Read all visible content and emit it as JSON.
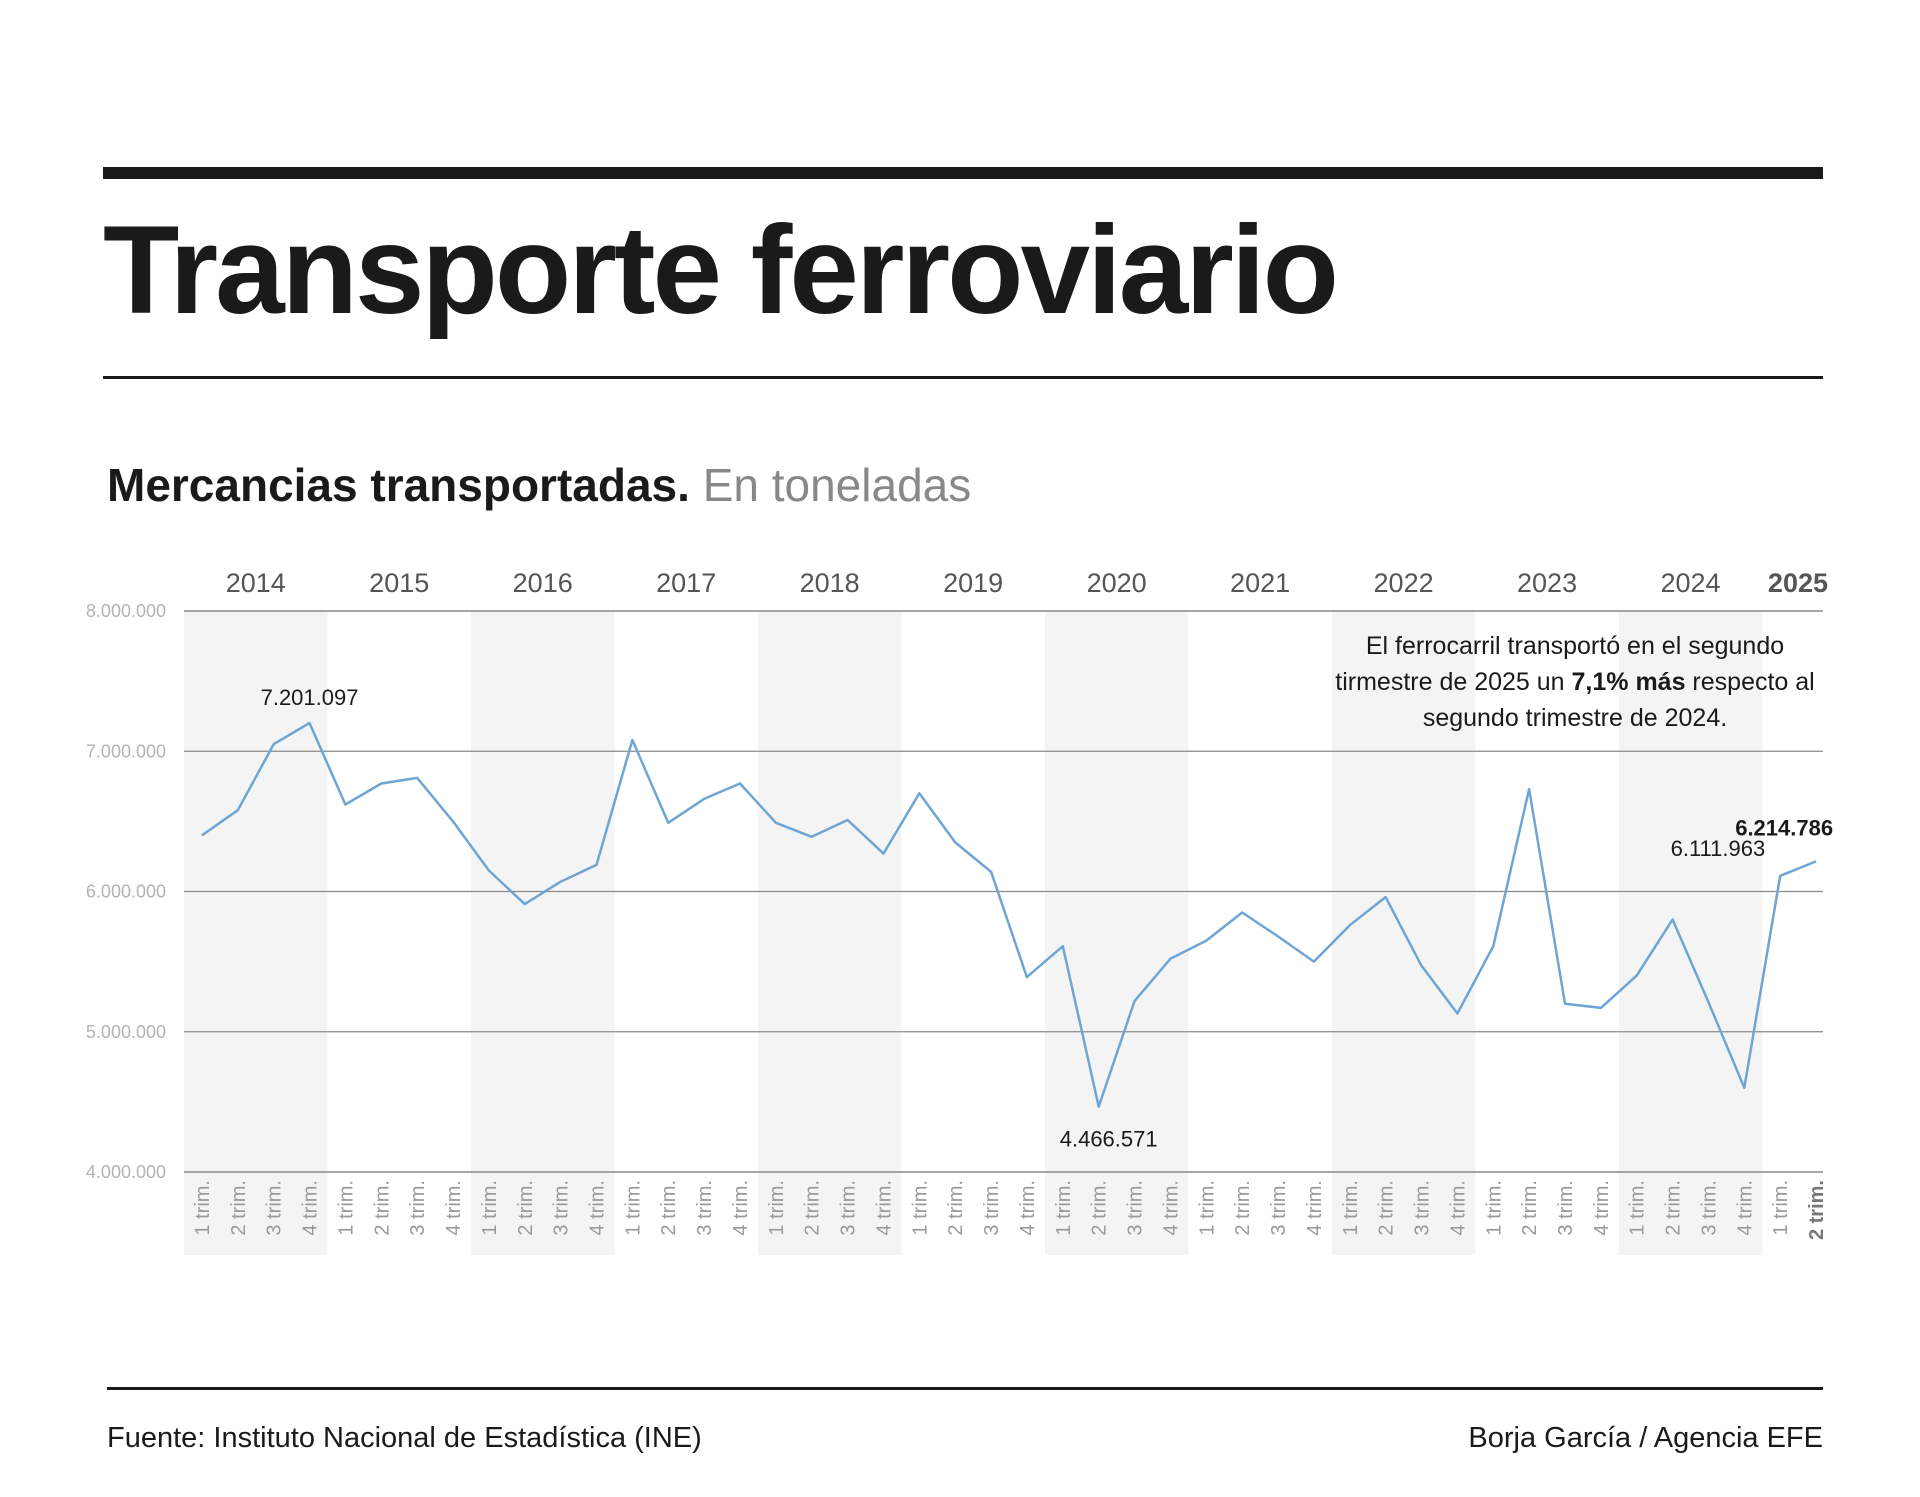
{
  "header": {
    "title": "Transporte ferroviario",
    "subtitle": "Mercancias transportadas.",
    "unit": "En toneladas"
  },
  "chart_data": {
    "type": "line",
    "y_ticks": [
      {
        "value": 8000000,
        "label": "8.000.000"
      },
      {
        "value": 7000000,
        "label": "7.000.000"
      },
      {
        "value": 6000000,
        "label": "6.000.000"
      },
      {
        "value": 5000000,
        "label": "5.000.000"
      },
      {
        "value": 4000000,
        "label": "4.000.000"
      }
    ],
    "ylim": [
      4000000,
      8000000
    ],
    "years": [
      "2014",
      "2015",
      "2016",
      "2017",
      "2018",
      "2019",
      "2020",
      "2021",
      "2022",
      "2023",
      "2024",
      "2025"
    ],
    "quarter_labels": [
      "1 trim.",
      "2 trim.",
      "3 trim.",
      "4 trim."
    ],
    "x": [
      "2014-Q1",
      "2014-Q2",
      "2014-Q3",
      "2014-Q4",
      "2015-Q1",
      "2015-Q2",
      "2015-Q3",
      "2015-Q4",
      "2016-Q1",
      "2016-Q2",
      "2016-Q3",
      "2016-Q4",
      "2017-Q1",
      "2017-Q2",
      "2017-Q3",
      "2017-Q4",
      "2018-Q1",
      "2018-Q2",
      "2018-Q3",
      "2018-Q4",
      "2019-Q1",
      "2019-Q2",
      "2019-Q3",
      "2019-Q4",
      "2020-Q1",
      "2020-Q2",
      "2020-Q3",
      "2020-Q4",
      "2021-Q1",
      "2021-Q2",
      "2021-Q3",
      "2021-Q4",
      "2022-Q1",
      "2022-Q2",
      "2022-Q3",
      "2022-Q4",
      "2023-Q1",
      "2023-Q2",
      "2023-Q3",
      "2023-Q4",
      "2024-Q1",
      "2024-Q2",
      "2024-Q3",
      "2024-Q4",
      "2025-Q1",
      "2025-Q2"
    ],
    "values": [
      6400000,
      6580000,
      7050000,
      7201097,
      6620000,
      6770000,
      6810000,
      6500000,
      6150000,
      5910000,
      6070000,
      6190000,
      7080000,
      6490000,
      6660000,
      6770000,
      6490000,
      6390000,
      6510000,
      6270000,
      6700000,
      6350000,
      6140000,
      5390000,
      5610000,
      4466571,
      5220000,
      5520000,
      5650000,
      5850000,
      5680000,
      5500000,
      5760000,
      5960000,
      5470000,
      5130000,
      5610000,
      6730000,
      5200000,
      5170000,
      5400000,
      5800000,
      5210000,
      4600000,
      6111963,
      6214786
    ],
    "labels": [
      {
        "text": "7.201.097",
        "point": "2014-Q4"
      },
      {
        "text": "4.466.571",
        "point": "2020-Q2"
      },
      {
        "text": "6.111.963",
        "point": "2025-Q1"
      },
      {
        "text": "6.214.786",
        "point": "2025-Q2"
      }
    ],
    "grid": true,
    "alternate_year_bands": true,
    "line_color": "#6fa5d4",
    "band_color": "#f4f4f4",
    "grid_color": "#8a8a8a",
    "tick_color": "#b3b3b3",
    "year_color": "#555555",
    "annotation": {
      "line1": "El ferrocarril transportó en el segundo",
      "line2_pre": "tirmestre de 2025 un ",
      "line2_bold": "7,1% más",
      "line2_post": " respecto al",
      "line3": "segundo trimestre de 2024."
    }
  },
  "footer": {
    "source": "Fuente: Instituto Nacional de Estadística (INE)",
    "credit": "Borja García / Agencia EFE"
  }
}
